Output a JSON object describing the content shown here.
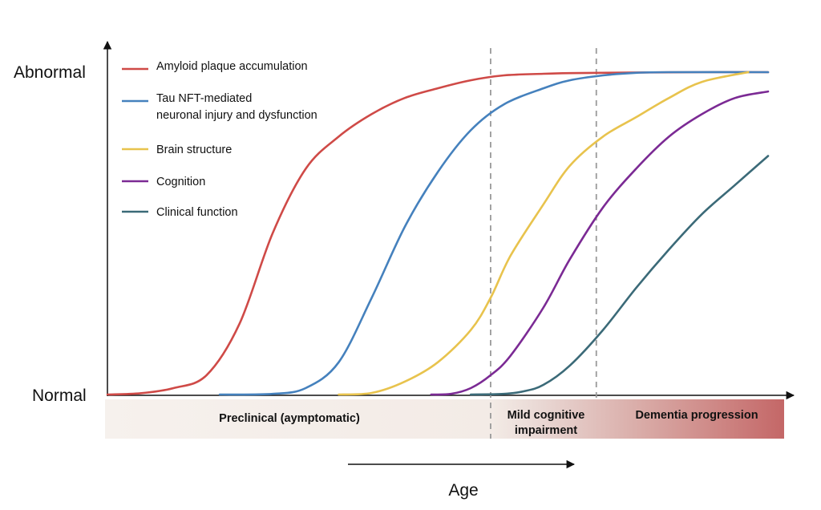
{
  "chart_data": {
    "type": "line",
    "ylabel_high": "Abnormal",
    "ylabel_low": "Normal",
    "xlabel": "Age",
    "x_range": [
      0,
      100
    ],
    "y_range": [
      0,
      1
    ],
    "grid": false,
    "legend_position": "top-left",
    "series": [
      {
        "name": "Amyloid plaque accumulation",
        "color": "#cf4a47",
        "points": [
          [
            0,
            0
          ],
          [
            5,
            0.004
          ],
          [
            10,
            0.02
          ],
          [
            15,
            0.06
          ],
          [
            20,
            0.22
          ],
          [
            25,
            0.5
          ],
          [
            30,
            0.7
          ],
          [
            35,
            0.8
          ],
          [
            40,
            0.87
          ],
          [
            45,
            0.92
          ],
          [
            50,
            0.95
          ],
          [
            55,
            0.975
          ],
          [
            60,
            0.99
          ],
          [
            66,
            0.995
          ],
          [
            70,
            0.997
          ],
          [
            80,
            0.999
          ],
          [
            90,
            1.0
          ],
          [
            100,
            1.0
          ]
        ]
      },
      {
        "name": "Tau NFT-mediated neuronal injury and dysfunction",
        "color": "#4581bd",
        "points": [
          [
            17,
            0
          ],
          [
            25,
            0.002
          ],
          [
            30,
            0.02
          ],
          [
            35,
            0.1
          ],
          [
            40,
            0.3
          ],
          [
            45,
            0.52
          ],
          [
            50,
            0.69
          ],
          [
            55,
            0.82
          ],
          [
            60,
            0.9
          ],
          [
            66,
            0.95
          ],
          [
            70,
            0.975
          ],
          [
            75,
            0.99
          ],
          [
            80,
            0.998
          ],
          [
            85,
            1.0
          ],
          [
            100,
            1.0
          ]
        ]
      },
      {
        "name": "Brain structure",
        "color": "#e8c34d",
        "points": [
          [
            35,
            0
          ],
          [
            40,
            0.005
          ],
          [
            45,
            0.04
          ],
          [
            50,
            0.1
          ],
          [
            55,
            0.2
          ],
          [
            58,
            0.3
          ],
          [
            61,
            0.43
          ],
          [
            66,
            0.59
          ],
          [
            70,
            0.71
          ],
          [
            75,
            0.8
          ],
          [
            80,
            0.86
          ],
          [
            85,
            0.92
          ],
          [
            90,
            0.97
          ],
          [
            97,
            1.0
          ]
        ]
      },
      {
        "name": "Cognition",
        "color": "#7b2a94",
        "points": [
          [
            49,
            0
          ],
          [
            52,
            0.002
          ],
          [
            55,
            0.02
          ],
          [
            58,
            0.06
          ],
          [
            61,
            0.12
          ],
          [
            66,
            0.27
          ],
          [
            70,
            0.42
          ],
          [
            75,
            0.58
          ],
          [
            80,
            0.7
          ],
          [
            85,
            0.8
          ],
          [
            90,
            0.87
          ],
          [
            95,
            0.92
          ],
          [
            100,
            0.94
          ]
        ]
      },
      {
        "name": "Clinical function",
        "color": "#3b6a78",
        "points": [
          [
            55,
            0
          ],
          [
            60,
            0.002
          ],
          [
            63,
            0.01
          ],
          [
            66,
            0.03
          ],
          [
            70,
            0.09
          ],
          [
            75,
            0.2
          ],
          [
            80,
            0.33
          ],
          [
            85,
            0.45
          ],
          [
            90,
            0.56
          ],
          [
            95,
            0.65
          ],
          [
            100,
            0.74
          ]
        ]
      }
    ],
    "stage_labels": [
      {
        "label": "Preclinical (aymptomatic)"
      },
      {
        "label_line1": "Mild cognitive",
        "label_line2": "impairment"
      },
      {
        "label": "Dementia progression"
      }
    ],
    "dividers_x": [
      58,
      74
    ]
  }
}
